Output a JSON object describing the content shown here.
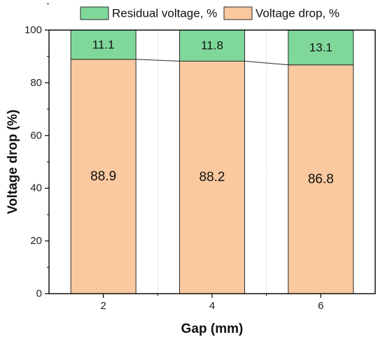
{
  "chart_data": {
    "type": "bar",
    "stacked": true,
    "categories": [
      "2",
      "4",
      "6"
    ],
    "series": [
      {
        "name": "Voltage drop, %",
        "values": [
          88.9,
          88.2,
          86.8
        ],
        "color": "#FAC99F"
      },
      {
        "name": "Residual voltage, %",
        "values": [
          11.1,
          11.8,
          13.1
        ],
        "color": "#7FD89A"
      }
    ],
    "xlabel": "Gap (mm)",
    "ylabel": "Voltage drop (%)",
    "ylim": [
      0,
      100
    ],
    "yticks": [
      0,
      20,
      40,
      60,
      80,
      100
    ],
    "legend_position": "top",
    "grid": false,
    "connector_lines": true
  }
}
